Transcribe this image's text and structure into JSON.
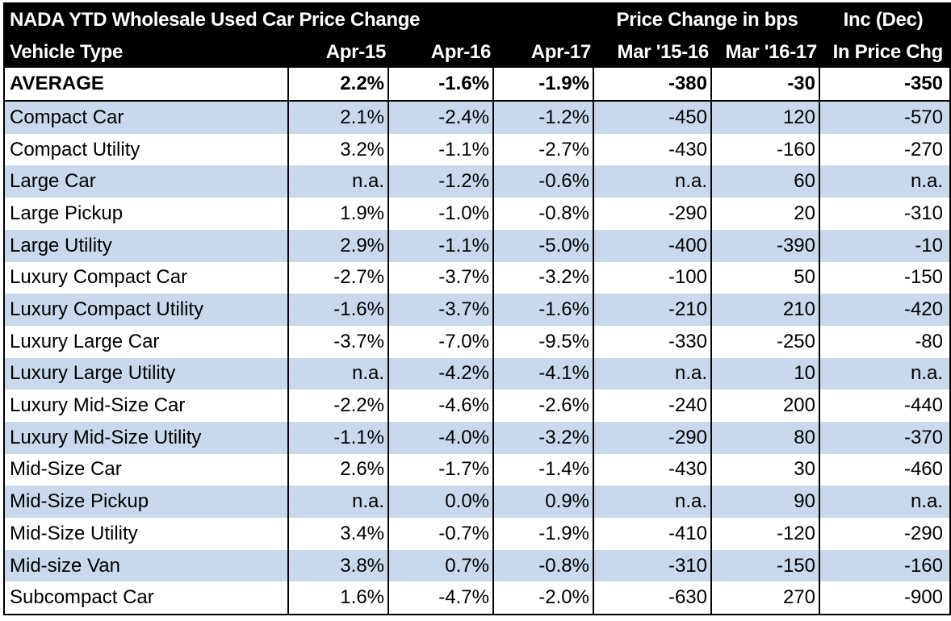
{
  "header": {
    "title": "NADA YTD Wholesale Used Car Price Change",
    "group_bps": "Price Change in bps",
    "group_inc": "Inc (Dec)",
    "col_vehicle": "Vehicle Type",
    "col_apr15": "Apr-15",
    "col_apr16": "Apr-16",
    "col_apr17": "Apr-17",
    "col_mar1516": "Mar '15-16",
    "col_mar1617": "Mar '16-17",
    "col_inc": "In Price Chg"
  },
  "average": {
    "label": "AVERAGE",
    "apr15": "2.2%",
    "apr16": "-1.6%",
    "apr17": "-1.9%",
    "mar1516": "-380",
    "mar1617": "-30",
    "inc": "-350"
  },
  "rows": [
    {
      "label": "Compact Car",
      "apr15": "2.1%",
      "apr16": "-2.4%",
      "apr17": "-1.2%",
      "mar1516": "-450",
      "mar1617": "120",
      "inc": "-570"
    },
    {
      "label": "Compact Utility",
      "apr15": "3.2%",
      "apr16": "-1.1%",
      "apr17": "-2.7%",
      "mar1516": "-430",
      "mar1617": "-160",
      "inc": "-270"
    },
    {
      "label": "Large Car",
      "apr15": "n.a.",
      "apr16": "-1.2%",
      "apr17": "-0.6%",
      "mar1516": "n.a.",
      "mar1617": "60",
      "inc": "n.a."
    },
    {
      "label": "Large Pickup",
      "apr15": "1.9%",
      "apr16": "-1.0%",
      "apr17": "-0.8%",
      "mar1516": "-290",
      "mar1617": "20",
      "inc": "-310"
    },
    {
      "label": "Large Utility",
      "apr15": "2.9%",
      "apr16": "-1.1%",
      "apr17": "-5.0%",
      "mar1516": "-400",
      "mar1617": "-390",
      "inc": "-10"
    },
    {
      "label": "Luxury Compact Car",
      "apr15": "-2.7%",
      "apr16": "-3.7%",
      "apr17": "-3.2%",
      "mar1516": "-100",
      "mar1617": "50",
      "inc": "-150"
    },
    {
      "label": "Luxury Compact Utility",
      "apr15": "-1.6%",
      "apr16": "-3.7%",
      "apr17": "-1.6%",
      "mar1516": "-210",
      "mar1617": "210",
      "inc": "-420"
    },
    {
      "label": "Luxury Large Car",
      "apr15": "-3.7%",
      "apr16": "-7.0%",
      "apr17": "-9.5%",
      "mar1516": "-330",
      "mar1617": "-250",
      "inc": "-80"
    },
    {
      "label": "Luxury Large Utility",
      "apr15": "n.a.",
      "apr16": "-4.2%",
      "apr17": "-4.1%",
      "mar1516": "n.a.",
      "mar1617": "10",
      "inc": "n.a."
    },
    {
      "label": "Luxury Mid-Size Car",
      "apr15": "-2.2%",
      "apr16": "-4.6%",
      "apr17": "-2.6%",
      "mar1516": "-240",
      "mar1617": "200",
      "inc": "-440"
    },
    {
      "label": "Luxury Mid-Size Utility",
      "apr15": "-1.1%",
      "apr16": "-4.0%",
      "apr17": "-3.2%",
      "mar1516": "-290",
      "mar1617": "80",
      "inc": "-370"
    },
    {
      "label": "Mid-Size Car",
      "apr15": "2.6%",
      "apr16": "-1.7%",
      "apr17": "-1.4%",
      "mar1516": "-430",
      "mar1617": "30",
      "inc": "-460"
    },
    {
      "label": "Mid-Size Pickup",
      "apr15": "n.a.",
      "apr16": "0.0%",
      "apr17": "0.9%",
      "mar1516": "n.a.",
      "mar1617": "90",
      "inc": "n.a."
    },
    {
      "label": "Mid-Size Utility",
      "apr15": "3.4%",
      "apr16": "-0.7%",
      "apr17": "-1.9%",
      "mar1516": "-410",
      "mar1617": "-120",
      "inc": "-290"
    },
    {
      "label": "Mid-size Van",
      "apr15": "3.8%",
      "apr16": "0.7%",
      "apr17": "-0.8%",
      "mar1516": "-310",
      "mar1617": "-150",
      "inc": "-160"
    },
    {
      "label": "Subcompact Car",
      "apr15": "1.6%",
      "apr16": "-4.7%",
      "apr17": "-2.0%",
      "mar1516": "-630",
      "mar1617": "270",
      "inc": "-900"
    }
  ],
  "colors": {
    "header_bg": "#000000",
    "header_text": "#ffffff",
    "band": "#c9d9eb",
    "plain": "#ffffff"
  }
}
